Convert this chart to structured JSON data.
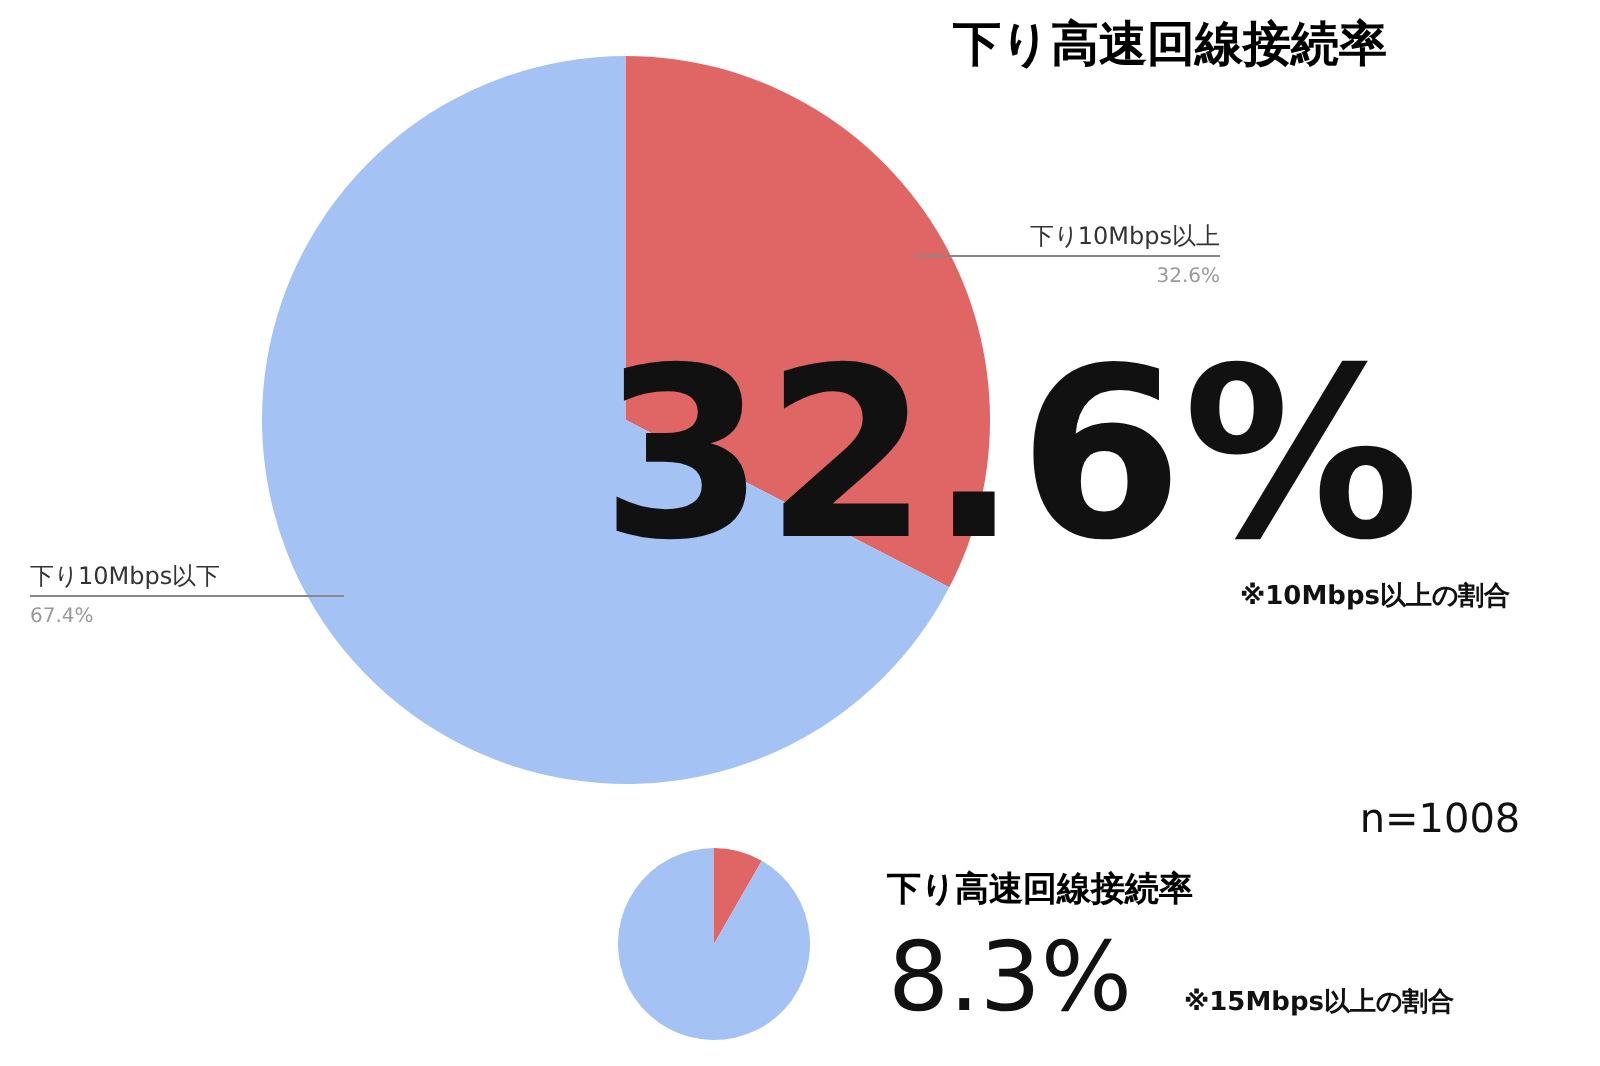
{
  "chart_data": [
    {
      "type": "pie",
      "title": "下り高速回線接続率",
      "categories": [
        "下り10Mbps以上",
        "下り10Mbps以下"
      ],
      "values": [
        32.6,
        67.4
      ],
      "colors": [
        "#e06666",
        "#a4c2f4"
      ],
      "value_labels": [
        "32.6%",
        "67.4%"
      ],
      "annotations": [
        "32.6%",
        "※10Mbps以上の割合",
        "n=1008"
      ]
    },
    {
      "type": "pie",
      "title": "下り高速回線接続率",
      "categories": [
        null,
        null
      ],
      "values": [
        8.3,
        91.7
      ],
      "colors": [
        "#e06666",
        "#a4c2f4"
      ],
      "annotations": [
        "8.3%",
        "※15Mbps以上の割合"
      ]
    }
  ]
}
